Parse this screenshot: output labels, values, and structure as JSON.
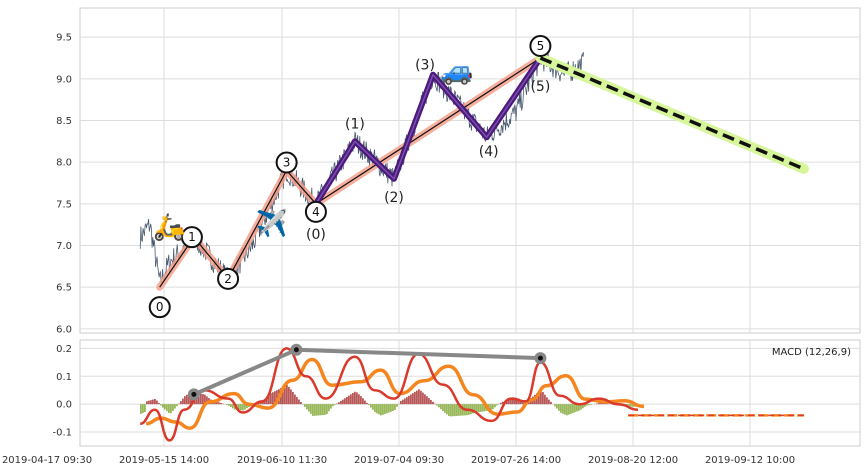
{
  "chart_data": {
    "type": "line",
    "title": "",
    "x_ticks": [
      "2019-04-17 09:30",
      "2019-05-15 14:00",
      "2019-06-10 11:30",
      "2019-07-04 09:30",
      "2019-07-26 14:00",
      "2019-08-20 12:00",
      "2019-09-12 10:00"
    ],
    "price_panel": {
      "ylim": [
        5.95,
        9.85
      ],
      "y_ticks": [
        "6.0",
        "6.5",
        "7.0",
        "7.5",
        "8.0",
        "8.5",
        "9.0",
        "9.5"
      ],
      "wave_points": [
        {
          "label": "0",
          "x": "2019-05-10",
          "y": 6.5
        },
        {
          "label": "1",
          "x": "2019-05-17",
          "y": 7.1
        },
        {
          "label": "2",
          "x": "2019-05-24",
          "y": 6.6
        },
        {
          "label": "3",
          "x": "2019-06-05",
          "y": 7.9
        },
        {
          "label": "4",
          "x": "2019-06-11",
          "y": 7.5
        },
        {
          "label": "5",
          "x": "2019-07-27",
          "y": 9.25
        }
      ],
      "subwave_points": [
        {
          "label": "(0)",
          "x": "2019-06-11",
          "y": 7.5
        },
        {
          "label": "(1)",
          "x": "2019-06-19",
          "y": 8.25
        },
        {
          "label": "(2)",
          "x": "2019-06-27",
          "y": 7.8
        },
        {
          "label": "(3)",
          "x": "2019-07-05",
          "y": 9.05
        },
        {
          "label": "(4)",
          "x": "2019-07-16",
          "y": 8.3
        },
        {
          "label": "(5)",
          "x": "2019-07-27",
          "y": 9.25
        }
      ],
      "forecast": [
        {
          "x": "2019-07-27",
          "y": 9.25
        },
        {
          "x": "2019-09-19",
          "y": 7.92
        }
      ],
      "emojis": [
        {
          "symbol": "🛵",
          "x": "2019-05-12",
          "y": 7.23
        },
        {
          "symbol": "✈️",
          "x": "2019-06-02",
          "y": 7.27
        },
        {
          "symbol": "🚙",
          "x": "2019-07-10",
          "y": 9.1
        }
      ]
    },
    "macd_panel": {
      "legend": "MACD (12,26,9)",
      "ylim": [
        -0.15,
        0.23
      ],
      "y_ticks": [
        "-0.1",
        "0.0",
        "0.1",
        "0.2"
      ],
      "divergence_points": [
        {
          "x": "2019-05-17",
          "y": 0.035
        },
        {
          "x": "2019-06-07",
          "y": 0.195
        },
        {
          "x": "2019-07-27",
          "y": 0.165
        }
      ]
    },
    "colors": {
      "price_line": "#4a5a70",
      "wave_main": "#f4a08c",
      "wave_black": "#111111",
      "subwave": "#4b1a7a",
      "forecast": "#111111",
      "forecast_glow": "#d7f59a",
      "macd": "#d93a2b",
      "signal": "#f5861f",
      "hist_pos": "#a42828",
      "hist_neg": "#7aa32a",
      "divergence": "#888888"
    }
  }
}
